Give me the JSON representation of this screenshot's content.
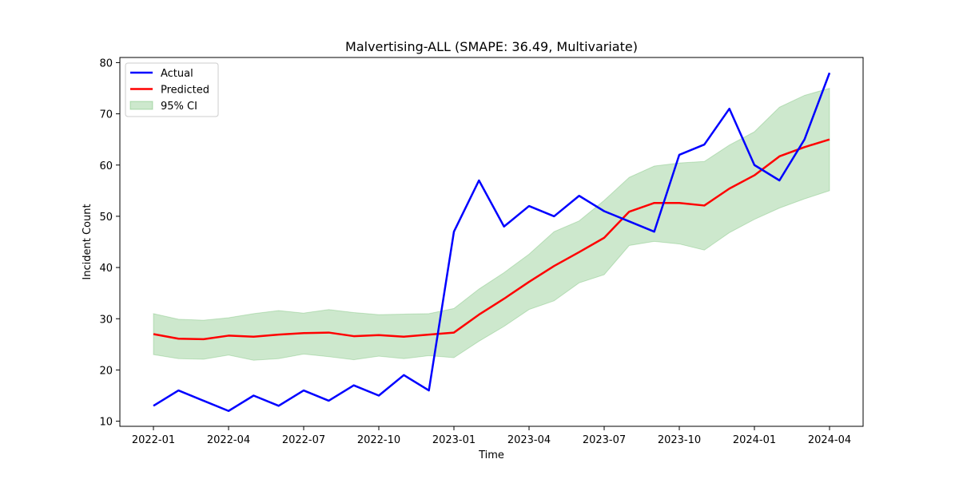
{
  "chart_data": {
    "type": "line",
    "title": "Malvertising-ALL (SMAPE: 36.49, Multivariate)",
    "xlabel": "Time",
    "ylabel": "Incident Count",
    "x": [
      "2022-01",
      "2022-02",
      "2022-03",
      "2022-04",
      "2022-05",
      "2022-06",
      "2022-07",
      "2022-08",
      "2022-09",
      "2022-10",
      "2022-11",
      "2022-12",
      "2023-01",
      "2023-02",
      "2023-03",
      "2023-04",
      "2023-05",
      "2023-06",
      "2023-07",
      "2023-08",
      "2023-09",
      "2023-10",
      "2023-11",
      "2023-12",
      "2024-01",
      "2024-02",
      "2024-03",
      "2024-04"
    ],
    "x_ticks": [
      "2022-01",
      "2022-04",
      "2022-07",
      "2022-10",
      "2023-01",
      "2023-04",
      "2023-07",
      "2023-10",
      "2024-01",
      "2024-04"
    ],
    "y_ticks": [
      10,
      20,
      30,
      40,
      50,
      60,
      70,
      80
    ],
    "ylim": [
      9,
      81
    ],
    "series": [
      {
        "name": "Actual",
        "color": "#0000ff",
        "values": [
          13,
          16,
          14,
          12,
          15,
          13,
          16,
          14,
          17,
          15,
          19,
          16,
          47,
          57,
          48,
          52,
          50,
          54,
          51,
          49,
          47,
          62,
          64,
          71,
          60,
          57,
          65,
          78
        ]
      },
      {
        "name": "Predicted",
        "color": "#ff0000",
        "values": [
          27,
          26.1,
          26,
          26.7,
          26.5,
          26.9,
          27.2,
          27.3,
          26.6,
          26.8,
          26.5,
          26.9,
          27.3,
          30.8,
          33.9,
          37.2,
          40.3,
          43,
          45.8,
          50.9,
          52.6,
          52.6,
          52.1,
          55.4,
          58,
          61.7,
          63.5,
          65
        ]
      }
    ],
    "band": {
      "name": "95% CI",
      "color": "#2ca02c",
      "lower": [
        23,
        22.2,
        22.1,
        22.9,
        21.9,
        22.2,
        23.1,
        22.6,
        22,
        22.7,
        22.2,
        22.8,
        22.4,
        25.6,
        28.5,
        31.8,
        33.5,
        37,
        38.6,
        44.3,
        45.1,
        44.6,
        43.4,
        46.8,
        49.4,
        51.6,
        53.4,
        55
      ],
      "upper": [
        31,
        29.9,
        29.7,
        30.2,
        31,
        31.6,
        31.1,
        31.8,
        31.2,
        30.8,
        30.9,
        31,
        32,
        35.8,
        39,
        42.6,
        47,
        49.1,
        53.1,
        57.6,
        59.8,
        60.4,
        60.7,
        63.9,
        66.5,
        71.3,
        73.6,
        75
      ]
    },
    "legend": "top-left",
    "grid": false
  }
}
